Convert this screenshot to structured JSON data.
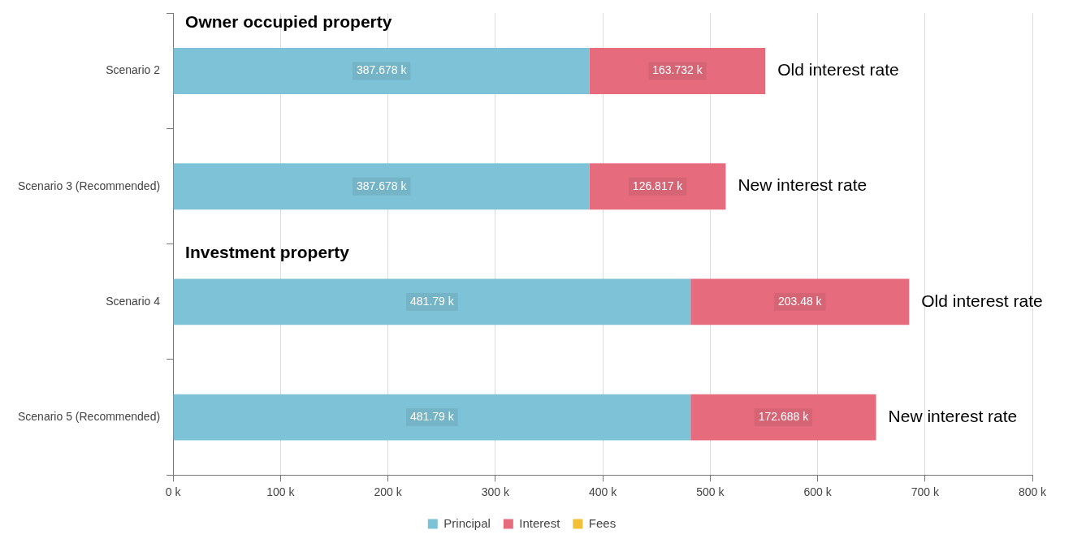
{
  "chart_data": {
    "type": "bar",
    "orientation": "horizontal",
    "stacked": true,
    "data_labels": true,
    "grid": true,
    "legend": "bottom",
    "categories": [
      "Scenario 2",
      "Scenario 3 (Recommended)",
      "Scenario 4",
      "Scenario 5 (Recommended)"
    ],
    "series": [
      {
        "name": "Principal",
        "color": "#7dc2d6",
        "values": [
          387.678,
          387.678,
          481.79,
          481.79
        ],
        "value_labels": [
          "387.678 k",
          "387.678 k",
          "481.79 k",
          "481.79 k"
        ]
      },
      {
        "name": "Interest",
        "color": "#e66c7d",
        "values": [
          163.732,
          126.817,
          203.48,
          172.688
        ],
        "value_labels": [
          "163.732 k",
          "126.817 k",
          "203.48 k",
          "172.688 k"
        ]
      },
      {
        "name": "Fees",
        "color": "#f2c037",
        "values": [
          null,
          null,
          null,
          null
        ]
      }
    ],
    "xlim": [
      0,
      800
    ],
    "xticks": [
      {
        "value": 0,
        "label": "0 k"
      },
      {
        "value": 100,
        "label": "100 k"
      },
      {
        "value": 200,
        "label": "200 k"
      },
      {
        "value": 300,
        "label": "300 k"
      },
      {
        "value": 400,
        "label": "400 k"
      },
      {
        "value": 500,
        "label": "500 k"
      },
      {
        "value": 600,
        "label": "600 k"
      },
      {
        "value": 700,
        "label": "700 k"
      },
      {
        "value": 800,
        "label": "800 k"
      }
    ],
    "group_labels": [
      {
        "text": "Owner occupied property",
        "category": "Scenario 2"
      },
      {
        "text": "Investment property",
        "category": "Scenario 4"
      }
    ],
    "annotations": [
      {
        "text": "Old interest rate",
        "category": "Scenario 2"
      },
      {
        "text": "New interest rate",
        "category": "Scenario 3 (Recommended)"
      },
      {
        "text": "Old interest rate",
        "category": "Scenario 4"
      },
      {
        "text": "New interest rate",
        "category": "Scenario 5 (Recommended)"
      }
    ]
  }
}
